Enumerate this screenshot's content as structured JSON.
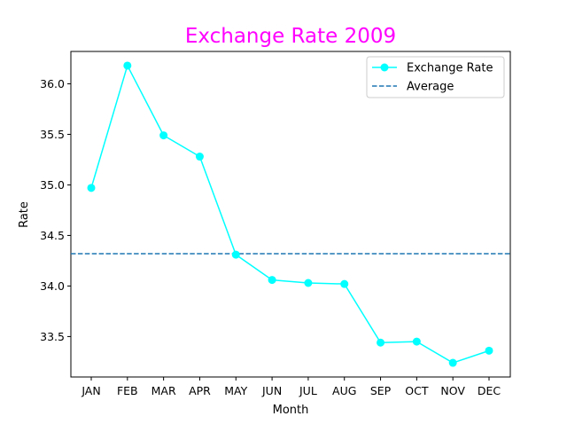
{
  "chart_data": {
    "type": "line",
    "title": "Exchange Rate 2009",
    "xlabel": "Month",
    "ylabel": "Rate",
    "categories": [
      "JAN",
      "FEB",
      "MAR",
      "APR",
      "MAY",
      "JUN",
      "JUL",
      "AUG",
      "SEP",
      "OCT",
      "NOV",
      "DEC"
    ],
    "series": [
      {
        "name": "Exchange Rate",
        "values": [
          34.97,
          36.18,
          35.49,
          35.28,
          34.31,
          34.06,
          34.03,
          34.02,
          33.44,
          33.45,
          33.24,
          33.36
        ],
        "color": "#00ffff",
        "marker": "circle",
        "style": "solid"
      }
    ],
    "reference_lines": [
      {
        "name": "Average",
        "value": 34.32,
        "color": "#1f77b4",
        "style": "dashed"
      }
    ],
    "ylim": [
      33.1,
      36.32
    ],
    "yticks": [
      33.5,
      34.0,
      34.5,
      35.0,
      35.5,
      36.0
    ],
    "ytick_labels": [
      "33.5",
      "34.0",
      "34.5",
      "35.0",
      "35.5",
      "36.0"
    ],
    "grid": false,
    "legend": "top-right",
    "title_color": "#ff00ff"
  }
}
